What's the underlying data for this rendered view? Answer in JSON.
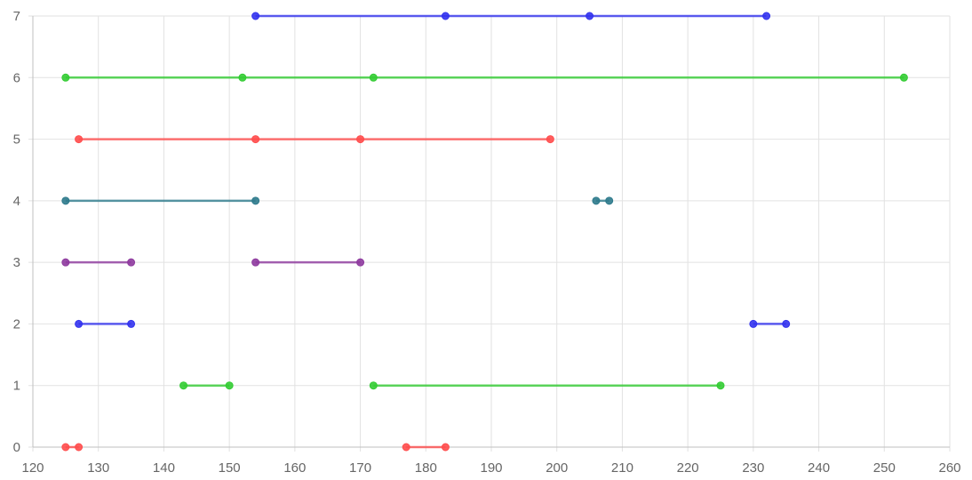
{
  "chart_data": {
    "type": "line",
    "title": "",
    "xlabel": "",
    "ylabel": "",
    "xlim": [
      120,
      260
    ],
    "ylim": [
      0,
      7
    ],
    "x_ticks": [
      "120",
      "130",
      "140",
      "150",
      "160",
      "170",
      "180",
      "190",
      "200",
      "210",
      "220",
      "230",
      "240",
      "250",
      "260"
    ],
    "y_ticks": [
      "0",
      "1",
      "2",
      "3",
      "4",
      "5",
      "6",
      "7"
    ],
    "grid": true,
    "legend": "none",
    "series": [
      {
        "color": "#ff4d4d",
        "y": 0,
        "segments": [
          [
            125,
            127
          ],
          [
            177,
            183
          ]
        ]
      },
      {
        "color": "#33cc33",
        "y": 1,
        "segments": [
          [
            143,
            150
          ],
          [
            172,
            225
          ]
        ]
      },
      {
        "color": "#3333ee",
        "y": 2,
        "segments": [
          [
            127,
            135
          ],
          [
            230,
            235
          ]
        ]
      },
      {
        "color": "#8e3a9e",
        "y": 3,
        "segments": [
          [
            125,
            135
          ],
          [
            154,
            170
          ]
        ]
      },
      {
        "color": "#2e7a8c",
        "y": 4,
        "segments": [
          [
            125,
            154
          ],
          [
            206,
            208
          ]
        ]
      },
      {
        "color": "#ff4d4d",
        "y": 5,
        "segments": [
          [
            127,
            154
          ],
          [
            154,
            170
          ],
          [
            170,
            199
          ]
        ]
      },
      {
        "color": "#33cc33",
        "y": 6,
        "segments": [
          [
            125,
            152
          ],
          [
            152,
            172
          ],
          [
            172,
            253
          ]
        ]
      },
      {
        "color": "#3333ee",
        "y": 7,
        "segments": [
          [
            154,
            183
          ],
          [
            183,
            205
          ],
          [
            205,
            232
          ]
        ]
      }
    ]
  }
}
